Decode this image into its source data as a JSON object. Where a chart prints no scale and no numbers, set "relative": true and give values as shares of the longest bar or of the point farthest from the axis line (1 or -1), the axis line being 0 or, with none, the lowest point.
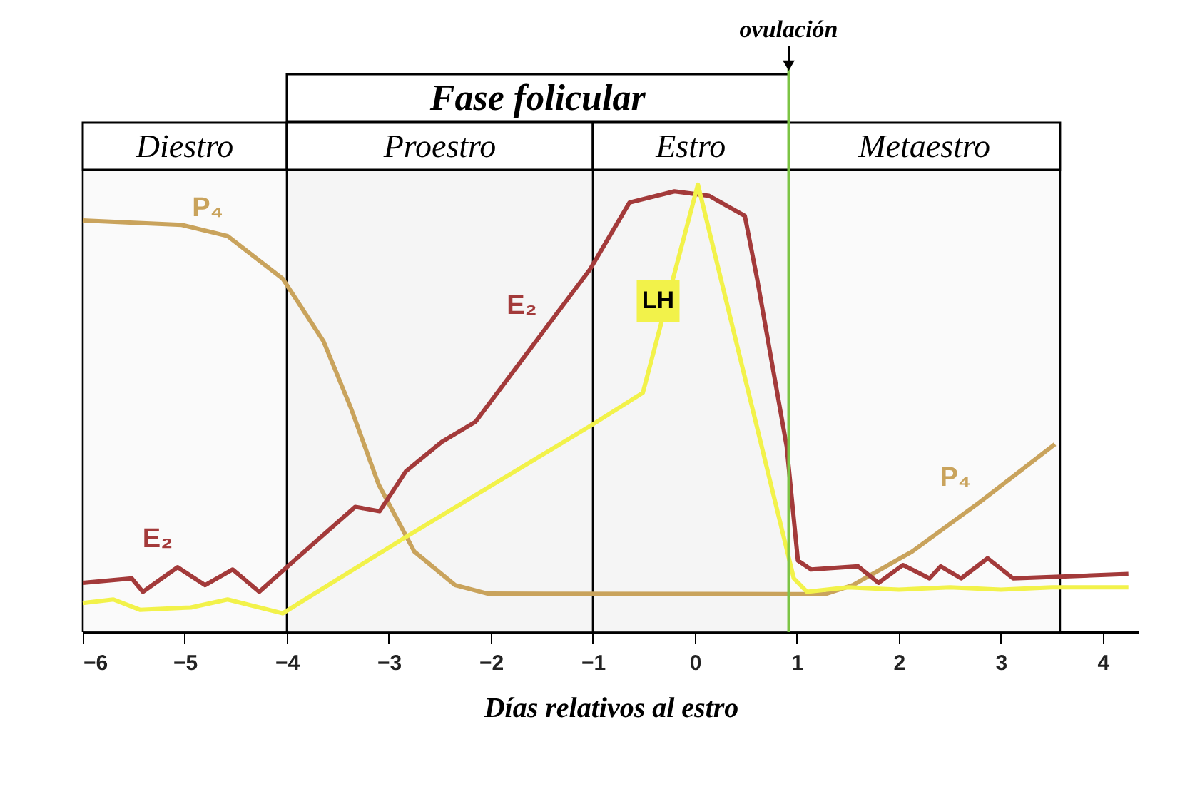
{
  "chart_data": {
    "type": "line",
    "relative": true,
    "xlabel": "Días relativos al estro",
    "xlim": [
      -6,
      4.35
    ],
    "xticks": [
      -6,
      -5,
      -4,
      -3,
      -2,
      -1,
      0,
      1,
      2,
      3,
      4
    ],
    "series": [
      {
        "color": "#c9a35c",
        "x": [
          -6,
          -5.03,
          -4.58,
          -4.04,
          -3.64,
          -3.37,
          -3.1,
          -2.75,
          -2.35,
          -2.03,
          0.92,
          1.28,
          1.55,
          2.13,
          2.79,
          3.53
        ],
        "values": [
          0.92,
          0.91,
          0.885,
          0.79,
          0.65,
          0.5,
          0.33,
          0.18,
          0.105,
          0.086,
          0.085,
          0.085,
          0.105,
          0.18,
          0.29,
          0.42
        ]
      },
      {
        "color": "#a33a3a",
        "x": [
          -6,
          -5.52,
          -5.41,
          -5.07,
          -4.8,
          -4.53,
          -4.27,
          -4.0,
          -3.33,
          -3.09,
          -2.83,
          -2.48,
          -2.15,
          -1.03,
          -0.64,
          -0.2,
          0.14,
          0.49,
          0.61,
          0.9,
          1.01,
          1.14,
          1.6,
          1.8,
          2.04,
          2.3,
          2.41,
          2.61,
          2.87,
          3.12,
          4.25
        ],
        "values": [
          0.11,
          0.12,
          0.09,
          0.145,
          0.105,
          0.14,
          0.09,
          0.145,
          0.28,
          0.27,
          0.36,
          0.425,
          0.47,
          0.81,
          0.96,
          0.985,
          0.975,
          0.93,
          0.79,
          0.415,
          0.16,
          0.14,
          0.147,
          0.11,
          0.15,
          0.12,
          0.147,
          0.12,
          0.165,
          0.12,
          0.13
        ]
      },
      {
        "color": "#f2f24a",
        "x": [
          -6,
          -5.7,
          -5.44,
          -4.94,
          -4.58,
          -4.04,
          -2.85,
          -1.03,
          -0.51,
          0.03,
          0.97,
          1.1,
          1.5,
          2.0,
          2.5,
          3.0,
          3.5,
          4.25
        ],
        "values": [
          0.065,
          0.073,
          0.05,
          0.055,
          0.073,
          0.042,
          0.21,
          0.46,
          0.535,
          1.0,
          0.12,
          0.09,
          0.1,
          0.095,
          0.1,
          0.095,
          0.1,
          0.1
        ]
      }
    ],
    "annotations": [
      {
        "text": "P₄",
        "x": -4.58,
        "y": 0.885
      },
      {
        "text": "E₂",
        "x": -5.07,
        "y": 0.145
      },
      {
        "text": "E₂",
        "x": -1.5,
        "y": 0.667
      },
      {
        "text": "LH",
        "x": -0.36,
        "y": 0.74
      },
      {
        "text": "P₄",
        "x": 2.75,
        "y": 0.283
      }
    ],
    "ref_lines": [
      {
        "axis": "x",
        "value": 0.92,
        "label": "ovulación",
        "color": "#7cc444"
      }
    ],
    "bands": [
      {
        "axis": "x",
        "from": -6,
        "to": -4,
        "label": "Diestro"
      },
      {
        "axis": "x",
        "from": -4,
        "to": -1,
        "label": "Proestro"
      },
      {
        "axis": "x",
        "from": -1,
        "to": 0.92,
        "label": "Estro"
      },
      {
        "axis": "x",
        "from": 0.92,
        "to": 3.58,
        "label": "Metaestro"
      },
      {
        "axis": "x",
        "from": -4,
        "to": 0.92,
        "label": "Fase folicular"
      }
    ]
  }
}
